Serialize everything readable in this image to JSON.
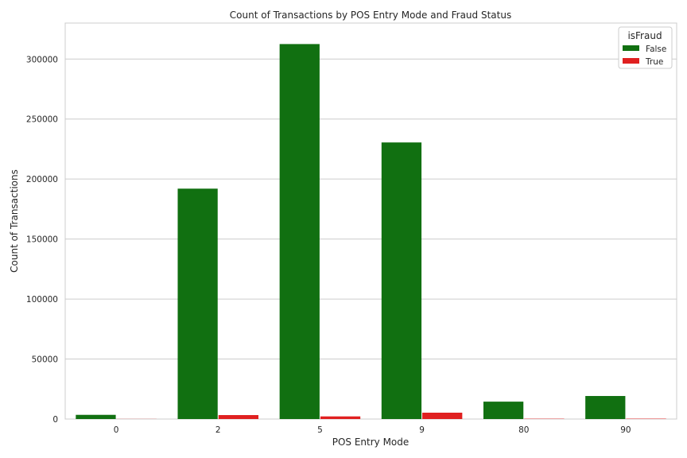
{
  "chart_data": {
    "type": "bar",
    "title": "Count of Transactions by POS Entry Mode and Fraud Status",
    "xlabel": "POS Entry Mode",
    "ylabel": "Count of Transactions",
    "categories": [
      "0",
      "2",
      "5",
      "9",
      "80",
      "90"
    ],
    "series": [
      {
        "name": "False",
        "color": "#117011",
        "values": [
          3500,
          192000,
          312500,
          230500,
          14500,
          19200
        ]
      },
      {
        "name": "True",
        "color": "#e02020",
        "values": [
          80,
          3300,
          2200,
          5300,
          250,
          300
        ]
      }
    ],
    "ylim": [
      0,
      330000
    ],
    "yticks": [
      0,
      50000,
      100000,
      150000,
      200000,
      250000,
      300000
    ],
    "grid": true,
    "legend": {
      "title": "isFraud",
      "placement": "top-right"
    }
  }
}
